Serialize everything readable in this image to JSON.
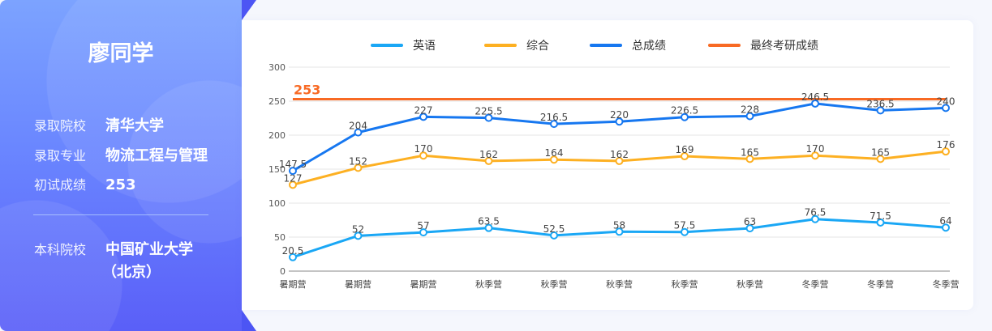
{
  "student": {
    "name": "廖同学",
    "fields": [
      {
        "label": "录取院校",
        "value": "清华大学"
      },
      {
        "label": "录取专业",
        "value": "物流工程与管理"
      },
      {
        "label": "初试成绩",
        "value": "253"
      }
    ],
    "undergrad": {
      "label": "本科院校",
      "value": "中国矿业大学",
      "value2": "（北京）"
    }
  },
  "chart_data": {
    "type": "line",
    "categories": [
      "暑期营",
      "暑期营",
      "暑期营",
      "秋季营",
      "秋季营",
      "秋季营",
      "秋季营",
      "秋季营",
      "冬季营",
      "冬季营",
      "冬季营"
    ],
    "ylim": [
      0,
      300
    ],
    "yticks": [
      "0",
      "50",
      "100",
      "150",
      "200",
      "250",
      "300"
    ],
    "grid": true,
    "legend_position": "top",
    "series": [
      {
        "name": "英语",
        "color": "#1aa7f5",
        "values": [
          20.5,
          52,
          57,
          63.5,
          52.5,
          58,
          57.5,
          63,
          76.5,
          71.5,
          64
        ]
      },
      {
        "name": "综合",
        "color": "#fdb022",
        "values": [
          127,
          152,
          170,
          162,
          164,
          162,
          169,
          165,
          170,
          165,
          176
        ]
      },
      {
        "name": "总成绩",
        "color": "#1677f0",
        "values": [
          147.5,
          204,
          227,
          225.5,
          216.5,
          220,
          226.5,
          228,
          246.5,
          236.5,
          240
        ]
      },
      {
        "name": "最终考研成绩",
        "color": "#f86a24",
        "value": 253,
        "label": "253"
      }
    ]
  }
}
